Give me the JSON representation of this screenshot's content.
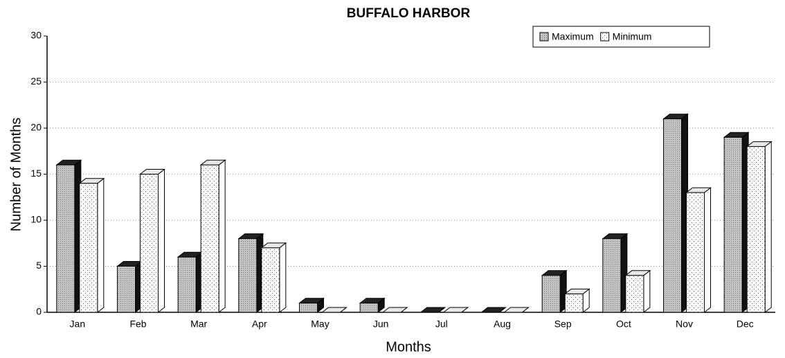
{
  "chart_data": {
    "type": "bar3d",
    "title": "BUFFALO HARBOR",
    "x_label": "Months",
    "y_label": "Number of Months",
    "categories": [
      "Jan",
      "Feb",
      "Mar",
      "Apr",
      "May",
      "Jun",
      "Jul",
      "Aug",
      "Sep",
      "Oct",
      "Nov",
      "Dec"
    ],
    "series": [
      {
        "name": "Maximum",
        "color": "#b8b8b8",
        "values": [
          16,
          5,
          6,
          8,
          1,
          1,
          0,
          0,
          4,
          8,
          21,
          19
        ]
      },
      {
        "name": "Minimum",
        "color": "#f4f4f4",
        "values": [
          14,
          15,
          16,
          7,
          0,
          0,
          0,
          0,
          2,
          4,
          13,
          18
        ]
      }
    ],
    "ylim": [
      0,
      30
    ],
    "yticks": [
      0,
      5,
      10,
      15,
      20,
      25,
      30
    ],
    "grid": true,
    "legend": "upper right"
  }
}
